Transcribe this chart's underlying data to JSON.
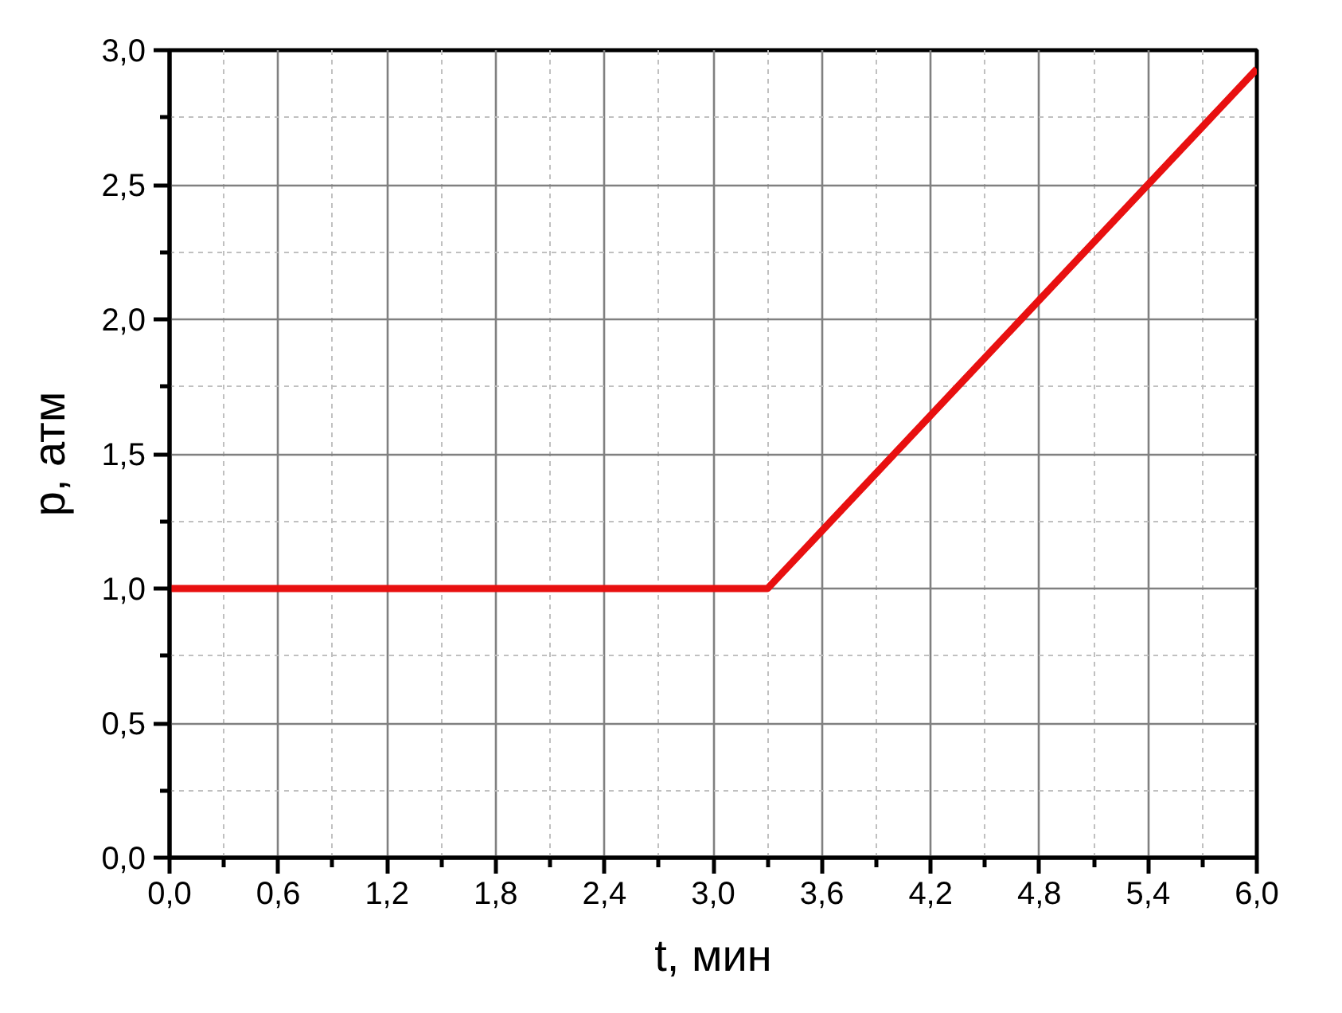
{
  "chart_data": {
    "type": "line",
    "xlabel": "t, мин",
    "ylabel": "p, атм",
    "xlim": [
      0,
      6
    ],
    "ylim": [
      0,
      3
    ],
    "xticks": [
      {
        "value": 0,
        "label": "0,0"
      },
      {
        "value": 0.3,
        "label": null
      },
      {
        "value": 0.6,
        "label": "0,6"
      },
      {
        "value": 0.9,
        "label": null
      },
      {
        "value": 1.2,
        "label": "1,2"
      },
      {
        "value": 1.5,
        "label": null
      },
      {
        "value": 1.8,
        "label": "1,8"
      },
      {
        "value": 2.1,
        "label": null
      },
      {
        "value": 2.4,
        "label": "2,4"
      },
      {
        "value": 2.7,
        "label": null
      },
      {
        "value": 3.0,
        "label": "3,0"
      },
      {
        "value": 3.3,
        "label": null
      },
      {
        "value": 3.6,
        "label": "3,6"
      },
      {
        "value": 3.9,
        "label": null
      },
      {
        "value": 4.2,
        "label": "4,2"
      },
      {
        "value": 4.5,
        "label": null
      },
      {
        "value": 4.8,
        "label": "4,8"
      },
      {
        "value": 5.1,
        "label": null
      },
      {
        "value": 5.4,
        "label": "5,4"
      },
      {
        "value": 5.7,
        "label": null
      },
      {
        "value": 6.0,
        "label": "6,0"
      }
    ],
    "yticks": [
      {
        "value": 0,
        "label": "0,0"
      },
      {
        "value": 0.25,
        "label": null
      },
      {
        "value": 0.5,
        "label": "0,5"
      },
      {
        "value": 0.75,
        "label": null
      },
      {
        "value": 1.0,
        "label": "1,0"
      },
      {
        "value": 1.25,
        "label": null
      },
      {
        "value": 1.5,
        "label": "1,5"
      },
      {
        "value": 1.75,
        "label": null
      },
      {
        "value": 2.0,
        "label": "2,0"
      },
      {
        "value": 2.25,
        "label": null
      },
      {
        "value": 2.5,
        "label": "2,5"
      },
      {
        "value": 2.75,
        "label": null
      },
      {
        "value": 3.0,
        "label": "3,0"
      }
    ],
    "series": [
      {
        "color": "#e81010",
        "x": [
          0,
          3.3,
          6.0
        ],
        "values": [
          1.0,
          1.0,
          2.93
        ]
      }
    ],
    "grid": true,
    "marker": "none",
    "line_style": "solid"
  }
}
